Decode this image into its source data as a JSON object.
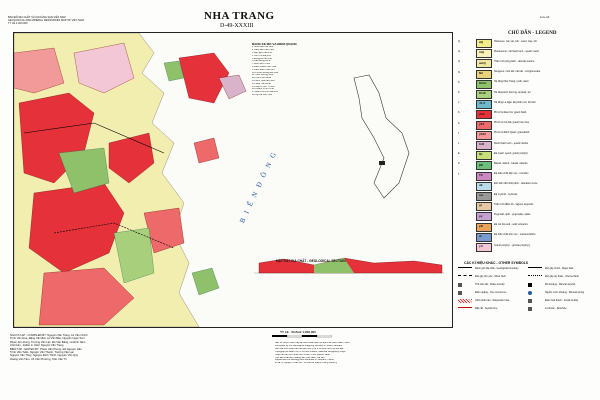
{
  "header": {
    "title": "NHA TRANG",
    "sheet_number": "D-49-XXXIII",
    "corner_line1": "BẢN ĐỒ ĐỊA CHẤT VÀ KHOÁNG SẢN VIỆT NAM",
    "corner_line2": "GEOLOGICAL AND MINERAL RESOURCES MAP OF VIET NAM",
    "corner_line3": "TỶ LỆ 1:200.000"
  },
  "legend": {
    "title": "CHÚ DẪN - LEGEND",
    "items": [
      {
        "age": "Q",
        "color": "#f2ee8a",
        "symbol": "aQ",
        "text": "Holocene: cát, sét, bột - sand, clay, silt"
      },
      {
        "age": "Q",
        "color": "#f6f2b8",
        "symbol": "mQ",
        "text": "Pleistocene: cát thạch anh - quartz sand"
      },
      {
        "age": "Q",
        "color": "#efe8a0",
        "symbol": "amQ",
        "text": "Trầm tích sông biển - alluvial-marine"
      },
      {
        "age": "N",
        "color": "#e9d27a",
        "symbol": "N2",
        "text": "Neogene: cuội kết, cát kết - conglomerate"
      },
      {
        "age": "K",
        "color": "#8fc06a",
        "symbol": "K2nc",
        "text": "Hệ tầng Nha Trang: ryolit, dacit"
      },
      {
        "age": "K",
        "color": "#a8d07c",
        "symbol": "K1dl",
        "text": "Hệ tầng Đơn Dương: andesit, tuf"
      },
      {
        "age": "J",
        "color": "#6fb8c8",
        "symbol": "J1-2",
        "text": "Hệ tầng La Ngà: đá phiến sét, bột kết"
      },
      {
        "age": "K",
        "color": "#e5313a",
        "symbol": "γK2",
        "text": "Phức hệ Đèo Cả: granit biotit"
      },
      {
        "age": "K",
        "color": "#ee6a6a",
        "symbol": "γK1",
        "text": "Phức hệ Cà Ná: granit hai mica"
      },
      {
        "age": "J",
        "color": "#f29a9a",
        "symbol": "γδJ3",
        "text": "Phức hệ Định Quán: granodiorit"
      },
      {
        "age": "J",
        "color": "#d9b3c9",
        "symbol": "δJ3",
        "text": "Diorit thạch anh - quartz diorite"
      },
      {
        "age": "E",
        "color": "#c7e07a",
        "symbol": "ξE",
        "text": "Đá mạch syenit, granit porphyr"
      },
      {
        "age": "P",
        "color": "#6ac07a",
        "symbol": "βP",
        "text": "Basalt, dolerit - basalt, dolerite"
      },
      {
        "age": "T",
        "color": "#cc88c0",
        "symbol": "T3",
        "text": "Đá biến chất tiếp xúc - hornfels"
      },
      {
        "age": "",
        "color": "#b9dce8",
        "symbol": "dk",
        "text": "Đới biến đổi nhiệt dịch - alteration zone"
      },
      {
        "age": "",
        "color": "#9a9a9a",
        "symbol": "ms",
        "text": "Đá mylonit - mylonite"
      },
      {
        "age": "",
        "color": "#e6c8a2",
        "symbol": "gl",
        "text": "Trầm tích đầm hồ - lagoon deposits"
      },
      {
        "age": "",
        "color": "#c6a0d0",
        "symbol": "pγ",
        "text": "Pegmatit, aplit - pegmatite, aplite"
      },
      {
        "age": "",
        "color": "#e9a35a",
        "symbol": "ρK",
        "text": "Đá núi lửa axit - acid volcanics"
      },
      {
        "age": "",
        "color": "#7a9ad0",
        "symbol": "al",
        "text": "Đá biến chất khu vực - metamorphics"
      },
      {
        "age": "",
        "color": "#f3c7d6",
        "symbol": "γπ",
        "text": "Granit porphyr - granite porphyry"
      }
    ]
  },
  "symbols": {
    "title": "CÁC KÍ HIỆU KHÁC - OTHER SYMBOLS",
    "items": [
      {
        "text": "Ranh giới địa chất - Geological boundary"
      },
      {
        "text": "Đứt gãy chính - Major fault"
      },
      {
        "text": "Đứt gãy thứ yếu - Minor fault"
      },
      {
        "text": "Đứt gãy dự đoán - Inferred fault"
      },
      {
        "text": "Thế nằm đá - Strike and dip"
      },
      {
        "text": "Mỏ khoáng - Mineral deposit"
      },
      {
        "text": "Điểm quặng - Ore occurrence"
      },
      {
        "text": "Nguồn nước khoáng - Mineral spring"
      },
      {
        "text": "Vành phân tán - Dispersion halo"
      },
      {
        "text": "Điểm hóa thạch - Fossil locality"
      },
      {
        "text": "Mặt cắt - Section line"
      },
      {
        "text": "Lỗ khoan - Borehole"
      }
    ]
  },
  "map": {
    "sea_label": "B I Ể N   Đ Ô N G",
    "table_title": "BẢNG KÊ MỎ VÀ ĐIỂM QUẶNG",
    "section_title": "MẶT CẮT ĐỊA CHẤT - GEOLOGICAL SECTION",
    "rows": [
      "1  Suối Dầu  Cát  Nhỏ",
      "2  Cam Lâm  Sét  Vừa",
      "3  Ba Ngòi  Cát  Nhỏ",
      "4  Hòn Tre  Đá  Lớn",
      "5  Đồng Bò  Sn  Nhỏ",
      "6  Cầu Bóng  Au  Đ",
      "7  Bình Ba  Ti  Nhỏ",
      "8  Diên Khánh  Sét  Vừa",
      "9  Cam Ranh  Cát  Lớn",
      "10 Phước Đồng  Đá  Vừa",
      "11 Vĩnh Lương  W  Đ",
      "12 Hòn Heo  Mo  Đ",
      "13 Ninh Hòa  Sét  Nhỏ",
      "14 Suối Tân  Au  Đ",
      "15 Cam Thịnh  Ti  Nhỏ",
      "16 Khánh Vĩnh  Pb  Đ",
      "17 Đảo Hòn Lớn  Đá  Lớn",
      "18 Mỹ Ca  Cát  Vừa"
    ]
  },
  "credits": {
    "lines": [
      "NGƯỜI LẬP - COMPILED BY: Nguyễn Văn Trang, Lê Văn Chính",
      "Trịnh Văn Hòa, Đặng Văn Bát, Lê Văn Bảo, Nguyễn Ngọc Sơn",
      "Phạm Kim Dung, Trương Văn Lạc, Đỗ Văn Bằng, Lê Đình Nam",
      "Chủ biên - Editor in chief: Nguyễn Văn Trang",
      "BIÊN TẬP - EDITED BY: Phạm Văn Phong, Đỗ Nguyễn Hảo",
      "Trịnh Văn Tuấn, Nguyễn Văn Thanh, Trương Văn Lạc",
      "Nguyễn Văn Thuỷ, Nguyễn Đình Thịnh, Nguyễn Văn Quý",
      "Hoàng Văn Tám, Võ Văn Phương, Trần Văn Trị"
    ]
  },
  "scale": {
    "label": "TỶ LỆ - SCALE 1:200.000"
  },
  "notes": {
    "lines": [
      "Bản đồ được thành lập tại Liên đoàn Bản đồ Địa chất miền Nam, 1996",
      "Compiled by the Geological Mapping Division of South Vietnam",
      "Nền địa hình theo bản đồ địa hình tỷ lệ 1:50.000 của Cục Đo đạc",
      "Topographic base from 1:50,000 sheets, National Geography Dept.",
      "Xuất bản lần thứ nhất năm 1998 - First edition 1998",
      "Cục Địa chất và Khoáng sản Việt Nam, Hà Nội",
      "Department of Geology and Minerals of Vietnam, Hanoi",
      "In tại Xí nghiệp In Bản đồ - Printed at Map Printing Factory"
    ]
  },
  "stamp": {
    "text": "Lưu số"
  }
}
